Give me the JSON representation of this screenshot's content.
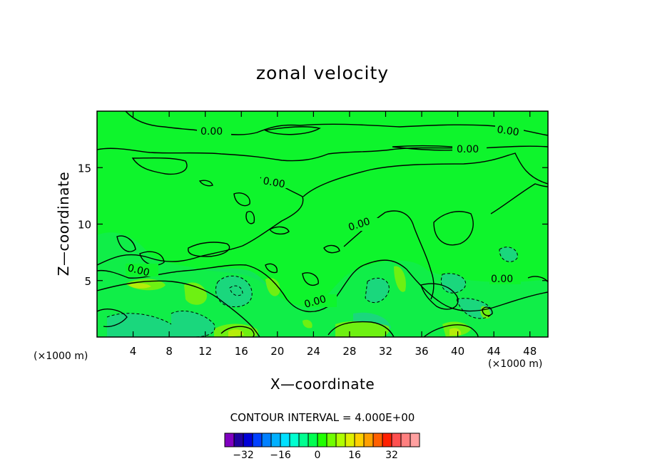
{
  "chart_data": {
    "type": "heatmap",
    "subtype": "filled-contour",
    "title": "zonal velocity",
    "xlabel": "X—coordinate",
    "ylabel": "Z—coordinate",
    "x_units": "(×1000 m)",
    "xlim": [
      0,
      50
    ],
    "ylim": [
      0,
      20
    ],
    "x_ticks": [
      4,
      8,
      12,
      16,
      20,
      24,
      28,
      32,
      36,
      40,
      44,
      48
    ],
    "y_ticks": [
      5,
      10,
      15
    ],
    "contour_interval_text": "CONTOUR INTERVAL = 4.000E+00",
    "contour_labels": [
      "0.00",
      "0.00",
      "0.00",
      "0.00",
      "0.00",
      "0.00",
      "0.00",
      "0.00"
    ],
    "colorbar": {
      "ticks": [
        "−32",
        "−16",
        "0",
        "16",
        "32"
      ],
      "tick_values": [
        -32,
        -16,
        0,
        16,
        32
      ],
      "colors": [
        "#8000c0",
        "#2000a0",
        "#0000d8",
        "#0040ff",
        "#0080ff",
        "#00b0ff",
        "#00e0ff",
        "#00ffd0",
        "#00ff90",
        "#00ff50",
        "#20ff00",
        "#70ff00",
        "#b0ff00",
        "#e0f000",
        "#ffd000",
        "#ffa000",
        "#ff6000",
        "#ff2000",
        "#ff5050",
        "#ff8080",
        "#ffa0a0"
      ]
    }
  }
}
